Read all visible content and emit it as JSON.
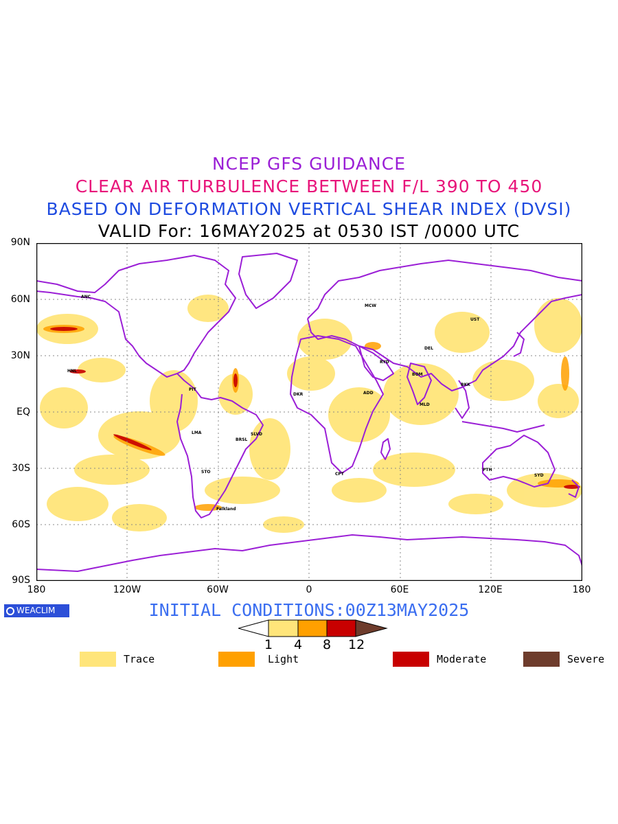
{
  "titles": {
    "line1": "NCEP GFS GUIDANCE",
    "line2": "CLEAR AIR TURBULENCE BETWEEN F/L 390 TO 450",
    "line3": "BASED ON DEFORMATION VERTICAL SHEAR INDEX (DVSI)",
    "line4": "VALID For: 16MAY2025 at 0530 IST /0000 UTC"
  },
  "axes": {
    "y_ticks": [
      "90N",
      "60N",
      "30N",
      "EQ",
      "30S",
      "60S",
      "90S"
    ],
    "x_ticks": [
      "180",
      "120W",
      "60W",
      "0",
      "60E",
      "120E",
      "180"
    ]
  },
  "initial_conditions": "INITIAL CONDITIONS:00Z13MAY2025",
  "logo": {
    "text": "WEACLIM"
  },
  "colorbar": {
    "ticks": [
      "1",
      "4",
      "8",
      "12"
    ],
    "colors": [
      "#ffffff",
      "#ffe57a",
      "#ffa000",
      "#c80000",
      "#6e3c2c"
    ]
  },
  "legend": [
    {
      "label": "Trace",
      "color": "#ffe57a"
    },
    {
      "label": "Light",
      "color": "#ffa000"
    },
    {
      "label": "Moderate",
      "color": "#c80000"
    },
    {
      "label": "Severe",
      "color": "#6e3c2c"
    }
  ],
  "colors": {
    "coastline": "#9b1fd6",
    "gridline": "#888888"
  },
  "stations": [
    "ANC",
    "MCW",
    "UST",
    "HNL",
    "PIT",
    "LMA",
    "BRSL",
    "SLVD",
    "STO",
    "DKR",
    "ADD",
    "MLD",
    "BKK",
    "PTH",
    "SYD",
    "CPT",
    "DEL",
    "RYD",
    "BOM",
    "Falkland"
  ]
}
